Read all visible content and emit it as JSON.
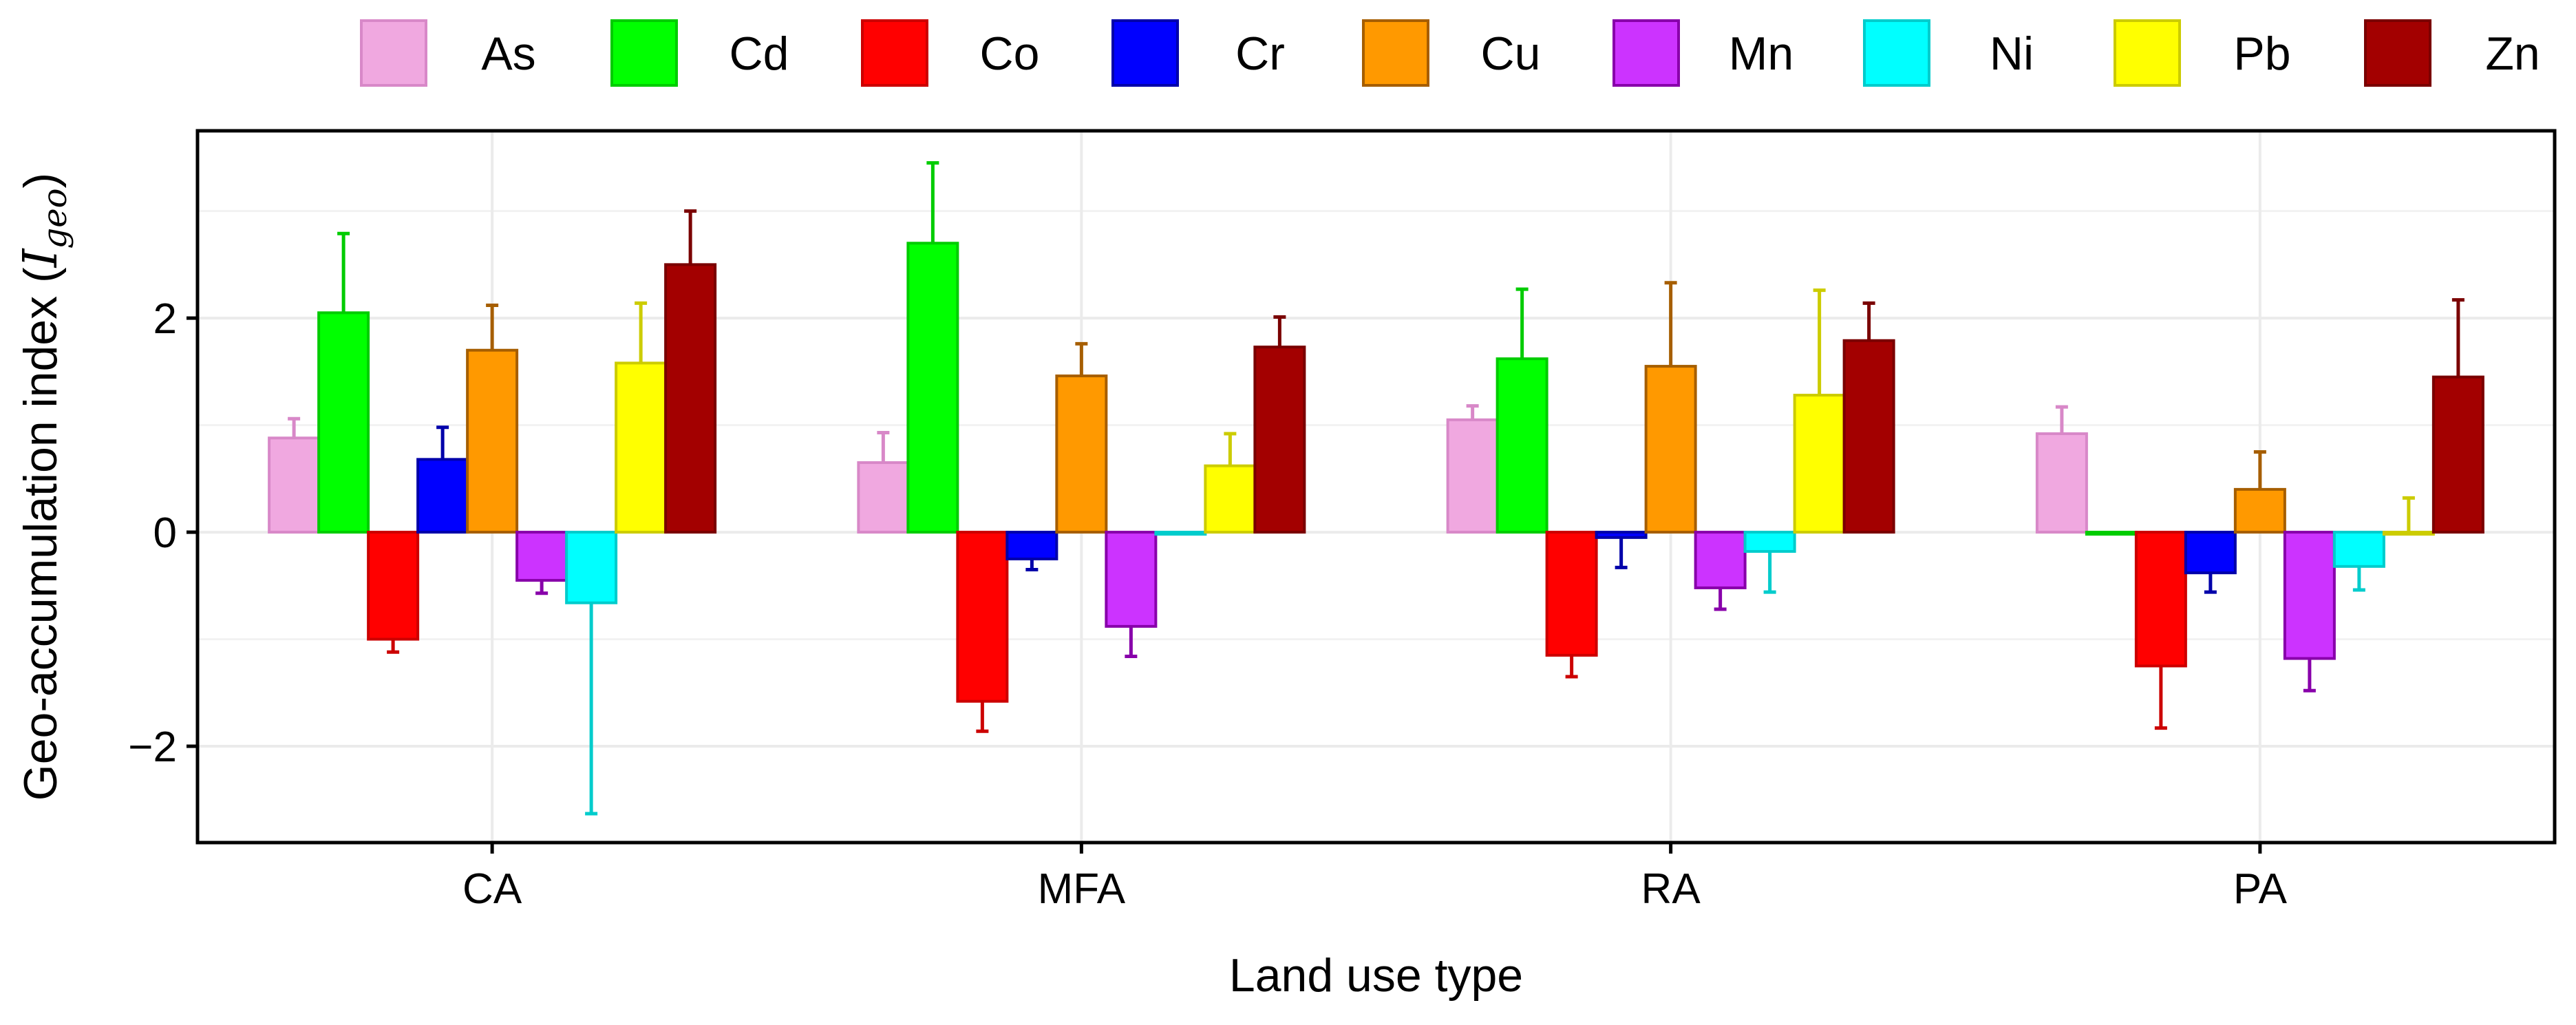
{
  "chart_data": {
    "type": "bar",
    "title": "",
    "xlabel": "Land use type",
    "ylabel_main": "Geo-accumulation index (",
    "ylabel_symbol": "I",
    "ylabel_subscript": "geo",
    "ylabel_close": ")",
    "ylim": [
      -2.9,
      3.75
    ],
    "yticks": [
      -2,
      0,
      2
    ],
    "ytick_labels": [
      "−2",
      "0",
      "2"
    ],
    "grid": true,
    "legend_position": "top",
    "categories": [
      "CA",
      "MFA",
      "RA",
      "PA"
    ],
    "series": [
      {
        "name": "As",
        "fill": "#f0a8e0",
        "stroke": "#d888c8",
        "values": [
          0.88,
          0.65,
          1.05,
          0.92
        ],
        "errors": [
          0.18,
          0.28,
          0.13,
          0.25
        ]
      },
      {
        "name": "Cd",
        "fill": "#00ff00",
        "stroke": "#00cc00",
        "values": [
          2.05,
          2.7,
          1.62,
          0.0
        ],
        "errors": [
          0.74,
          0.75,
          0.65,
          0.0
        ]
      },
      {
        "name": "Co",
        "fill": "#ff0000",
        "stroke": "#cc0000",
        "values": [
          -1.0,
          -1.58,
          -1.15,
          -1.25
        ],
        "errors": [
          0.12,
          0.28,
          0.2,
          0.58
        ]
      },
      {
        "name": "Cr",
        "fill": "#0000ff",
        "stroke": "#0000aa",
        "values": [
          0.68,
          -0.25,
          -0.05,
          -0.38
        ],
        "errors": [
          0.3,
          0.1,
          0.28,
          0.18
        ]
      },
      {
        "name": "Cu",
        "fill": "#ff9900",
        "stroke": "#a65e00",
        "values": [
          1.7,
          1.46,
          1.55,
          0.4
        ],
        "errors": [
          0.42,
          0.3,
          0.78,
          0.35
        ]
      },
      {
        "name": "Mn",
        "fill": "#cc33ff",
        "stroke": "#8800aa",
        "values": [
          -0.45,
          -0.88,
          -0.52,
          -1.18
        ],
        "errors": [
          0.12,
          0.28,
          0.2,
          0.3
        ]
      },
      {
        "name": "Ni",
        "fill": "#00ffff",
        "stroke": "#00cccc",
        "values": [
          -0.66,
          0.0,
          -0.18,
          -0.32
        ],
        "errors": [
          1.97,
          0.0,
          0.38,
          0.22
        ]
      },
      {
        "name": "Pb",
        "fill": "#ffff00",
        "stroke": "#cccc00",
        "values": [
          1.58,
          0.62,
          1.28,
          0.0
        ],
        "errors": [
          0.56,
          0.3,
          0.98,
          0.32
        ]
      },
      {
        "name": "Zn",
        "fill": "#a30000",
        "stroke": "#7a0000",
        "values": [
          2.5,
          1.73,
          1.79,
          1.45
        ],
        "errors": [
          0.5,
          0.28,
          0.35,
          0.72
        ]
      }
    ]
  }
}
